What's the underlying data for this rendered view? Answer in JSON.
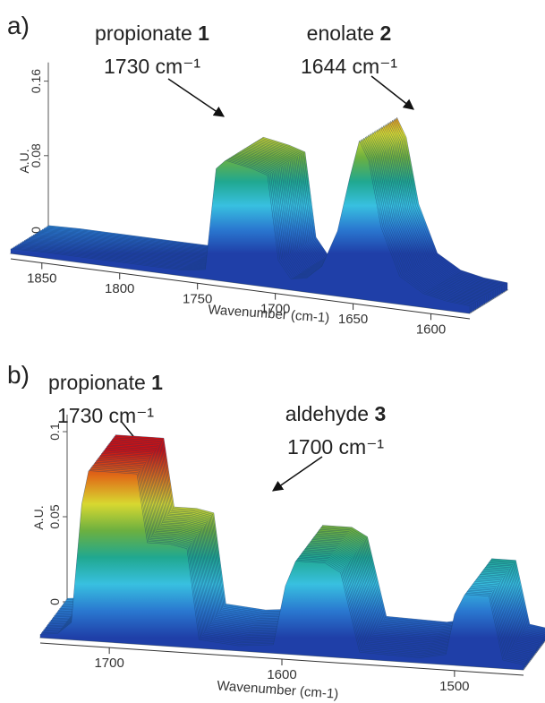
{
  "chart_data": [
    {
      "type": "waterfall",
      "panel_label": "a)",
      "annotations": [
        {
          "text": "propionate",
          "bold": "1",
          "sub": "1730 cm⁻¹"
        },
        {
          "text": "enolate",
          "bold": "2",
          "sub": "1644 cm⁻¹"
        }
      ],
      "x_label": "Wavenumber (cm-1)",
      "y_label": "A.U.",
      "x": [
        1870,
        1850,
        1800,
        1760,
        1745,
        1738,
        1732,
        1725,
        1715,
        1705,
        1698,
        1690,
        1680,
        1670,
        1660,
        1652,
        1646,
        1640,
        1632,
        1620,
        1605,
        1590,
        1575
      ],
      "values": [
        0.005,
        0.006,
        0.006,
        0.006,
        0.01,
        0.12,
        0.13,
        0.128,
        0.125,
        0.12,
        0.03,
        0.012,
        0.015,
        0.03,
        0.07,
        0.13,
        0.17,
        0.15,
        0.08,
        0.03,
        0.015,
        0.01,
        0.008
      ],
      "xlim": [
        1870,
        1575
      ],
      "xticks": [
        1850,
        1800,
        1750,
        1700,
        1650,
        1600
      ],
      "ylim": [
        0,
        0.18
      ],
      "yticks": [
        0,
        0.08,
        0.16
      ]
    },
    {
      "type": "waterfall",
      "panel_label": "b)",
      "annotations": [
        {
          "text": "propionate",
          "bold": "1",
          "sub": "1730 cm⁻¹"
        },
        {
          "text": "aldehyde",
          "bold": "3",
          "sub": "1700 cm⁻¹"
        }
      ],
      "x_label": "Wavenumber (cm-1)",
      "y_label": "A.U.",
      "x": [
        1740,
        1730,
        1722,
        1716,
        1712,
        1700,
        1690,
        1684,
        1678,
        1665,
        1655,
        1648,
        1625,
        1605,
        1598,
        1592,
        1575,
        1566,
        1555,
        1520,
        1505,
        1500,
        1494,
        1480,
        1472,
        1460
      ],
      "values": [
        0.002,
        0.003,
        0.01,
        0.08,
        0.1,
        0.1,
        0.1,
        0.1,
        0.06,
        0.06,
        0.058,
        0.005,
        0.003,
        0.005,
        0.04,
        0.055,
        0.055,
        0.05,
        0.004,
        0.003,
        0.006,
        0.03,
        0.042,
        0.042,
        0.005,
        0.003
      ],
      "xlim": [
        1740,
        1460
      ],
      "xticks": [
        1700,
        1600,
        1500
      ],
      "ylim": [
        0,
        0.11
      ],
      "yticks": [
        0,
        0.05,
        0.1
      ]
    }
  ]
}
